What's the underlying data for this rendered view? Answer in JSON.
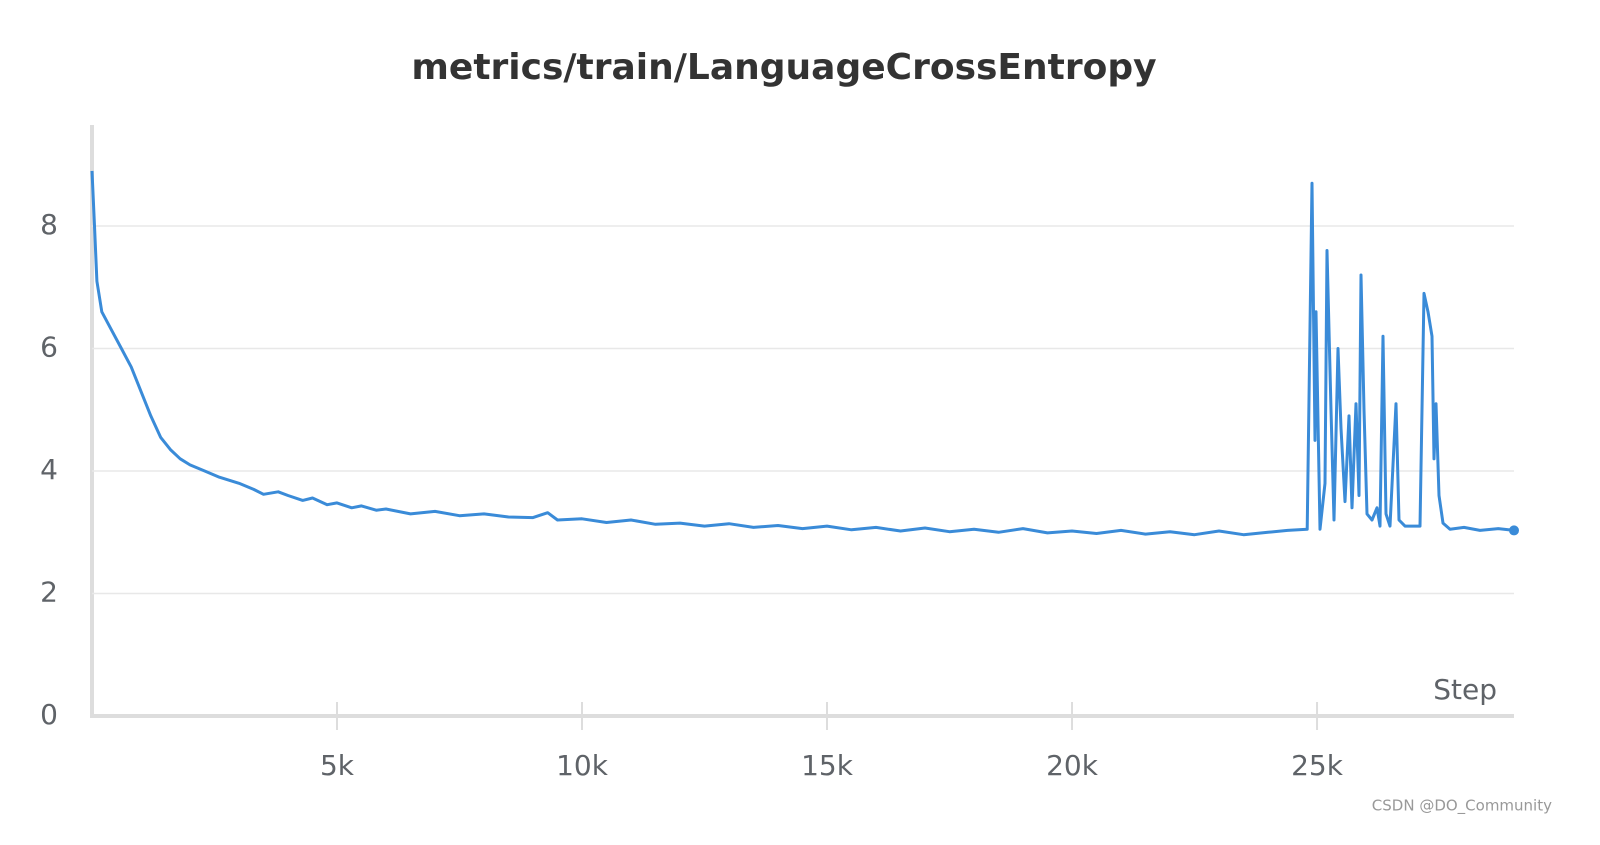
{
  "chart_data": {
    "type": "line",
    "title": "metrics/train/LanguageCrossEntropy",
    "xlabel": "Step",
    "watermark": "CSDN @DO_Community",
    "color": "#3a8bd8",
    "x": [
      0,
      50,
      100,
      200,
      400,
      600,
      800,
      1000,
      1200,
      1400,
      1600,
      1800,
      2000,
      2300,
      2600,
      3000,
      3300,
      3500,
      3800,
      4000,
      4300,
      4500,
      4800,
      5000,
      5300,
      5500,
      5800,
      6000,
      6500,
      7000,
      7500,
      8000,
      8500,
      9000,
      9300,
      9500,
      10000,
      10500,
      11000,
      11500,
      12000,
      12500,
      13000,
      13500,
      14000,
      14500,
      15000,
      15500,
      16000,
      16500,
      17000,
      17500,
      18000,
      18500,
      19000,
      19500,
      20000,
      20500,
      21000,
      21500,
      22000,
      22500,
      23000,
      23500,
      24000,
      24400,
      24800,
      24898,
      24959,
      24980,
      25061,
      25163,
      25204,
      25286,
      25347,
      25429,
      25490,
      25571,
      25653,
      25714,
      25796,
      25857,
      25898,
      25959,
      26020,
      26122,
      26224,
      26286,
      26347,
      26408,
      26490,
      26612,
      26673,
      26796,
      27102,
      27184,
      27265,
      27347,
      27388,
      27429,
      27490,
      27571,
      27714,
      28000,
      28327,
      28700,
      29020
    ],
    "values": [
      8.9,
      8.0,
      7.1,
      6.6,
      6.3,
      6.0,
      5.7,
      5.3,
      4.9,
      4.55,
      4.35,
      4.2,
      4.1,
      4.0,
      3.9,
      3.8,
      3.7,
      3.62,
      3.66,
      3.6,
      3.52,
      3.56,
      3.45,
      3.48,
      3.4,
      3.43,
      3.36,
      3.38,
      3.3,
      3.34,
      3.27,
      3.3,
      3.25,
      3.24,
      3.32,
      3.2,
      3.22,
      3.16,
      3.2,
      3.13,
      3.15,
      3.1,
      3.14,
      3.08,
      3.11,
      3.06,
      3.1,
      3.04,
      3.08,
      3.02,
      3.07,
      3.01,
      3.05,
      3.0,
      3.06,
      2.99,
      3.02,
      2.98,
      3.03,
      2.97,
      3.01,
      2.96,
      3.02,
      2.96,
      3.0,
      3.03,
      3.05,
      8.7,
      4.5,
      6.6,
      3.05,
      3.8,
      7.6,
      5.0,
      3.2,
      6.0,
      4.7,
      3.5,
      4.9,
      3.4,
      5.1,
      3.6,
      7.2,
      5.0,
      3.3,
      3.2,
      3.4,
      3.1,
      6.2,
      3.3,
      3.1,
      5.1,
      3.2,
      3.1,
      3.1,
      6.9,
      6.6,
      6.2,
      4.2,
      5.1,
      3.6,
      3.15,
      3.05,
      3.08,
      3.03,
      3.06,
      3.03
    ],
    "xlim": [
      0,
      29020
    ],
    "ylim": [
      0,
      9.65
    ],
    "xticks": [
      {
        "value": 5000,
        "label": "5k"
      },
      {
        "value": 10000,
        "label": "10k"
      },
      {
        "value": 15000,
        "label": "15k"
      },
      {
        "value": 20000,
        "label": "20k"
      },
      {
        "value": 25000,
        "label": "25k"
      }
    ],
    "yticks": [
      0,
      2,
      4,
      6,
      8
    ],
    "grid": true
  }
}
